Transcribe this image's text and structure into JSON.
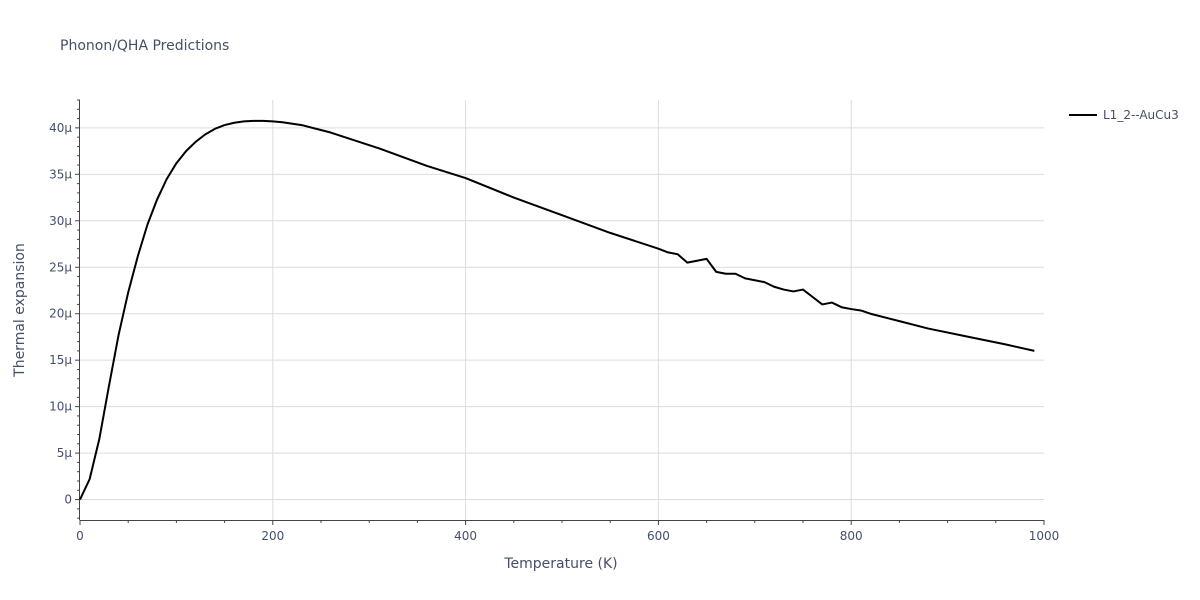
{
  "chart_data": {
    "type": "line",
    "title": "Phonon/QHA Predictions",
    "xlabel": "Temperature (K)",
    "ylabel": "Thermal expansion",
    "xlim": [
      0,
      1000
    ],
    "ylim": [
      -2.2e-06,
      4.3e-05
    ],
    "x_ticks": [
      0,
      200,
      400,
      600,
      800,
      1000
    ],
    "x_tick_labels": [
      "0",
      "200",
      "400",
      "600",
      "800",
      "1000"
    ],
    "y_ticks": [
      0,
      5e-06,
      1e-05,
      1.5e-05,
      2e-05,
      2.5e-05,
      3e-05,
      3.5e-05,
      4e-05
    ],
    "y_tick_labels": [
      "0",
      "5μ",
      "10μ",
      "15μ",
      "20μ",
      "25μ",
      "30μ",
      "35μ",
      "40μ"
    ],
    "grid": true,
    "legend_position": "top-right",
    "series": [
      {
        "name": "L1_2--AuCu3",
        "color": "#000000",
        "x": [
          0,
          10,
          20,
          30,
          40,
          50,
          60,
          70,
          80,
          90,
          100,
          110,
          120,
          130,
          140,
          150,
          160,
          170,
          180,
          190,
          200,
          210,
          230,
          260,
          310,
          360,
          400,
          450,
          500,
          550,
          600,
          610,
          620,
          630,
          640,
          650,
          660,
          670,
          680,
          690,
          700,
          710,
          720,
          730,
          740,
          750,
          760,
          770,
          780,
          790,
          800,
          810,
          820,
          850,
          880,
          920,
          960,
          990
        ],
        "y": [
          0,
          2.2e-06,
          6.5e-06,
          1.22e-05,
          1.77e-05,
          2.23e-05,
          2.62e-05,
          2.96e-05,
          3.23e-05,
          3.45e-05,
          3.62e-05,
          3.75e-05,
          3.85e-05,
          3.93e-05,
          3.99e-05,
          4.03e-05,
          4.055e-05,
          4.07e-05,
          4.075e-05,
          4.075e-05,
          4.07e-05,
          4.06e-05,
          4.03e-05,
          3.95e-05,
          3.78e-05,
          3.59e-05,
          3.46e-05,
          3.25e-05,
          3.06e-05,
          2.87e-05,
          2.7e-05,
          2.66e-05,
          2.64e-05,
          2.55e-05,
          2.57e-05,
          2.59e-05,
          2.45e-05,
          2.43e-05,
          2.43e-05,
          2.38e-05,
          2.36e-05,
          2.34e-05,
          2.29e-05,
          2.26e-05,
          2.24e-05,
          2.26e-05,
          2.18e-05,
          2.1e-05,
          2.12e-05,
          2.07e-05,
          2.05e-05,
          2.035e-05,
          2e-05,
          1.92e-05,
          1.84e-05,
          1.755e-05,
          1.67e-05,
          1.6e-05
        ]
      }
    ]
  }
}
